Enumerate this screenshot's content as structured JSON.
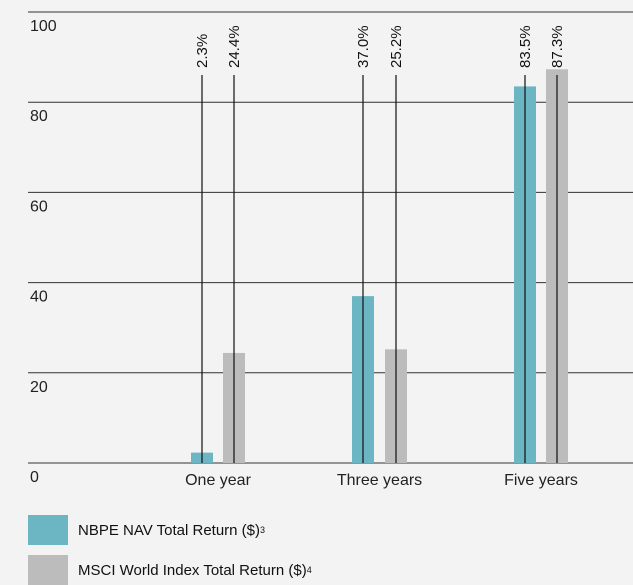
{
  "chart_data": {
    "type": "bar",
    "categories": [
      "One year",
      "Three years",
      "Five years"
    ],
    "series": [
      {
        "name": "NBPE NAV Total Return ($)",
        "footnote": "3",
        "color": "#6bb6c2",
        "values": [
          2.3,
          37.0,
          83.5
        ]
      },
      {
        "name": "MSCI World Index Total Return ($)",
        "footnote": "4",
        "color": "#bcbcbc",
        "values": [
          24.4,
          25.2,
          87.3
        ]
      }
    ],
    "value_labels": [
      [
        "2.3%",
        "37.0%",
        "83.5%"
      ],
      [
        "24.4%",
        "25.2%",
        "87.3%"
      ]
    ],
    "ylim": [
      0,
      100
    ],
    "yticks": [
      0,
      20,
      40,
      60,
      80,
      100
    ],
    "ytick_labels": [
      "0",
      "20",
      "40",
      "60",
      "80",
      "100"
    ],
    "grid": true,
    "legend_position": "bottom-left"
  }
}
